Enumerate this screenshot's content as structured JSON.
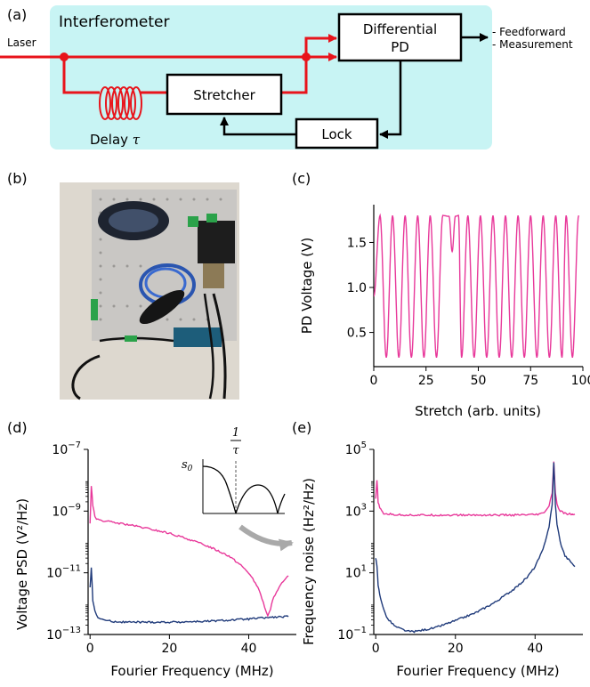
{
  "panel_labels": {
    "a": "(a)",
    "b": "(b)",
    "c": "(c)",
    "d": "(d)",
    "e": "(e)"
  },
  "diagram": {
    "box_title": "Interferometer",
    "laser_label": "Laser",
    "pd_line1": "Differential",
    "pd_line2": "PD",
    "stretcher": "Stretcher",
    "lock": "Lock",
    "delay_label": "Delay",
    "delay_symbol": "τ",
    "outputs": [
      "- Feedforward",
      "- Measurement"
    ],
    "colors": {
      "box_fill": "#c8f4f4",
      "optical": "#e8141b",
      "electrical": "#000000"
    }
  },
  "photo": {
    "description_icon": "apparatus-photo",
    "colors": {
      "background": "#ddd8cf",
      "breadboard": "#c9c7c4",
      "cable_blue": "#2a55b0"
    }
  },
  "inset": {
    "s0_label": "s",
    "s0_sub": "0",
    "frac_num": "1",
    "frac_den": "τ"
  },
  "chart_data": [
    {
      "id": "c",
      "type": "line",
      "xlabel": "Stretch (arb. units)",
      "ylabel": "PD Voltage (V)",
      "xlim": [
        0,
        100
      ],
      "ylim": [
        0.12,
        1.92
      ],
      "xticks": [
        0,
        25,
        50,
        75,
        100
      ],
      "yticks": [
        0.5,
        1.0,
        1.5
      ],
      "xtick_labels": [
        "0",
        "25",
        "50",
        "75",
        "100"
      ],
      "ytick_labels": [
        "0.5",
        "1.0",
        "1.5"
      ],
      "series": [
        {
          "color": "#e8389a",
          "x": [
            0,
            3,
            6,
            9,
            12,
            15,
            18,
            21,
            24,
            27,
            30,
            33,
            36,
            37.5,
            39,
            40.5,
            42,
            45,
            48,
            51,
            54,
            57,
            60,
            63,
            66,
            69,
            72,
            75,
            78,
            81,
            84,
            87,
            90,
            92,
            95,
            98
          ],
          "y": [
            0.9,
            1.8,
            0.22,
            1.8,
            0.22,
            1.8,
            0.22,
            1.8,
            0.22,
            1.8,
            0.22,
            1.8,
            1.79,
            1.4,
            1.79,
            1.8,
            0.22,
            1.8,
            0.22,
            1.8,
            0.22,
            1.8,
            0.22,
            1.8,
            0.22,
            1.8,
            0.22,
            1.8,
            0.22,
            1.8,
            0.22,
            1.8,
            0.22,
            1.8,
            0.22,
            1.8
          ]
        }
      ]
    },
    {
      "id": "d",
      "type": "line",
      "xlabel": "Fourier Frequency (MHz)",
      "ylabel": "Voltage PSD (V²/Hz)",
      "xlim": [
        -0.5,
        52
      ],
      "ylim_log10": [
        -13,
        -7
      ],
      "yscale": "log",
      "xticks": [
        0,
        20,
        40
      ],
      "xtick_labels": [
        "0",
        "20",
        "40"
      ],
      "yticks_log10": [
        -13,
        -11,
        -9,
        -7
      ],
      "ytick_labels": [
        "10^-13",
        "10^-11",
        "10^-9",
        "10^-7"
      ],
      "series": [
        {
          "color": "#e8389a",
          "x": [
            0,
            0.3,
            0.7,
            1.2,
            2,
            5,
            10,
            15,
            20,
            25,
            30,
            35,
            38,
            40,
            42,
            43,
            44,
            44.8,
            45.5,
            46,
            47,
            48,
            49,
            50
          ],
          "y_log10": [
            -9.4,
            -8.2,
            -8.8,
            -9.2,
            -9.28,
            -9.35,
            -9.45,
            -9.58,
            -9.72,
            -9.92,
            -10.15,
            -10.45,
            -10.75,
            -11.0,
            -11.4,
            -11.7,
            -12.1,
            -12.4,
            -12.2,
            -11.9,
            -11.6,
            -11.4,
            -11.25,
            -11.1
          ]
        },
        {
          "color": "#1f3a7a",
          "x": [
            0,
            0.3,
            0.7,
            1.2,
            2,
            4,
            6,
            10,
            20,
            30,
            40,
            45,
            50
          ],
          "y_log10": [
            -11.5,
            -10.8,
            -11.9,
            -12.25,
            -12.45,
            -12.55,
            -12.58,
            -12.6,
            -12.6,
            -12.57,
            -12.5,
            -12.45,
            -12.42
          ]
        }
      ]
    },
    {
      "id": "e",
      "type": "line",
      "xlabel": "Fourier Frequency (MHz)",
      "ylabel": "Frequency noise (Hz²/Hz)",
      "xlim": [
        -0.5,
        52
      ],
      "ylim_log10": [
        -1,
        5
      ],
      "yscale": "log",
      "xticks": [
        0,
        20,
        40
      ],
      "xtick_labels": [
        "0",
        "20",
        "40"
      ],
      "yticks_log10": [
        -1,
        1,
        3,
        5
      ],
      "ytick_labels": [
        "10^-1",
        "10^1",
        "10^3",
        "10^5"
      ],
      "series": [
        {
          "color": "#e8389a",
          "x": [
            0,
            0.3,
            0.6,
            1,
            1.5,
            2,
            5,
            10,
            20,
            30,
            35,
            40,
            42,
            43.5,
            44.3,
            44.7,
            45.1,
            45.5,
            46.3,
            47.5,
            49,
            50
          ],
          "y_log10": [
            3.4,
            4.0,
            3.3,
            3.1,
            3.0,
            2.92,
            2.88,
            2.87,
            2.87,
            2.87,
            2.87,
            2.88,
            2.92,
            3.15,
            3.6,
            4.6,
            3.6,
            3.2,
            3.0,
            2.92,
            2.9,
            2.9
          ]
        },
        {
          "color": "#1f3a7a",
          "x": [
            0,
            0.3,
            0.6,
            1,
            1.5,
            2,
            3,
            5,
            8,
            10,
            15,
            20,
            25,
            30,
            35,
            38,
            40,
            42,
            43.5,
            44.3,
            44.7,
            45.1,
            45.5,
            46.3,
            47.5,
            49,
            50
          ],
          "y_log10": [
            1.5,
            1.2,
            0.6,
            0.3,
            0.05,
            -0.2,
            -0.5,
            -0.75,
            -0.9,
            -0.9,
            -0.78,
            -0.55,
            -0.3,
            0.05,
            0.5,
            0.85,
            1.2,
            1.75,
            2.5,
            3.2,
            4.6,
            3.2,
            2.6,
            2.0,
            1.55,
            1.35,
            1.2
          ]
        }
      ]
    }
  ]
}
